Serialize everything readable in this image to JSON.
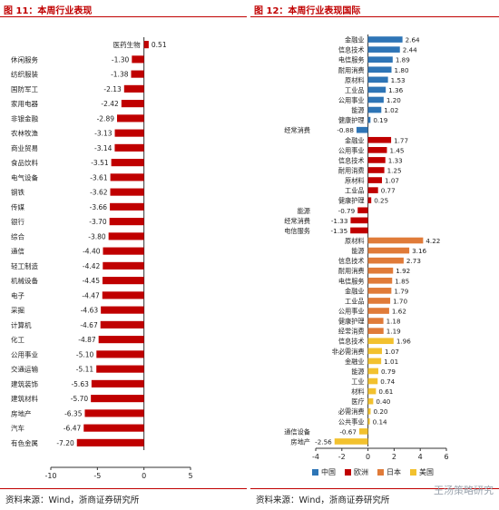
{
  "left_panel": {
    "title": "图 11：本周行业表现",
    "source": "资料来源：Wind，浙商证券研究所"
  },
  "right_panel": {
    "title": "图 12：本周行业表现国际",
    "source": "资料来源：Wind，浙商证券研究所",
    "watermark": "王汤策略研究"
  },
  "colors": {
    "china": "#2e75b6",
    "europe": "#c00000",
    "japan": "#e07b39",
    "us": "#f2c12e",
    "left_bar": "#c00000",
    "accent": "#c00000"
  },
  "chart_data": [
    {
      "type": "bar",
      "orientation": "horizontal",
      "categories": [
        "医药生物",
        "休闲服务",
        "纺织服装",
        "国防军工",
        "家用电器",
        "非银金融",
        "农林牧渔",
        "商业贸易",
        "食品饮料",
        "电气设备",
        "钢铁",
        "传媒",
        "银行",
        "综合",
        "通信",
        "轻工制造",
        "机械设备",
        "电子",
        "采掘",
        "计算机",
        "化工",
        "公用事业",
        "交通运输",
        "建筑装饰",
        "建筑材料",
        "房地产",
        "汽车",
        "有色金属"
      ],
      "values": [
        0.51,
        -1.3,
        -1.38,
        -2.13,
        -2.42,
        -2.89,
        -3.13,
        -3.14,
        -3.51,
        -3.61,
        -3.62,
        -3.66,
        -3.7,
        -3.8,
        -4.4,
        -4.42,
        -4.45,
        -4.47,
        -4.63,
        -4.67,
        -4.87,
        -5.1,
        -5.11,
        -5.63,
        -5.7,
        -6.35,
        -6.47,
        -7.2
      ],
      "value_labels": [
        "0.51",
        "-1.30",
        "-1.38",
        "-2.13",
        "-2.42",
        "-2.89",
        "-3.13",
        "-3.14",
        "-3.51",
        "-3.61",
        "-3.62",
        "-3.66",
        "-3.70",
        "-3.80",
        "-4.40",
        "-4.42",
        "-4.45",
        "-4.47",
        "-4.63",
        "-4.67",
        "-4.87",
        "-5.10",
        "-5.11",
        "-5.63",
        "-5.70",
        "-6.35",
        "-6.47",
        "-7.20"
      ],
      "xlim": [
        -10,
        5
      ],
      "xticks": [
        "-10",
        "-5",
        "0",
        "5"
      ],
      "xtick_values": [
        -10,
        -5,
        0,
        5
      ],
      "grid": false
    },
    {
      "type": "bar",
      "orientation": "horizontal",
      "categories": [
        "金融业",
        "信息技术",
        "电信服务",
        "耐用消费",
        "原材料",
        "工业品",
        "公用事业",
        "能源",
        "健康护理",
        "经常消费",
        "金融业",
        "公用事业",
        "信息技术",
        "耐用消费",
        "原材料",
        "工业品",
        "健康护理",
        "能源",
        "经常消费",
        "电信服务",
        "原材料",
        "能源",
        "信息技术",
        "耐用消费",
        "电信服务",
        "金融业",
        "工业品",
        "公用事业",
        "健康护理",
        "经常消费",
        "信息技术",
        "非必需消费",
        "金融业",
        "能源",
        "工业",
        "材料",
        "医疗",
        "必需消费",
        "公共事业",
        "通信设备",
        "房地产"
      ],
      "values": [
        2.64,
        2.44,
        1.89,
        1.8,
        1.53,
        1.36,
        1.2,
        1.02,
        0.19,
        -0.88,
        1.77,
        1.45,
        1.33,
        1.25,
        1.07,
        0.77,
        0.25,
        -0.79,
        -1.33,
        -1.35,
        4.22,
        3.16,
        2.73,
        1.92,
        1.85,
        1.79,
        1.7,
        1.62,
        1.18,
        1.19,
        1.96,
        1.07,
        1.01,
        0.79,
        0.74,
        0.61,
        0.4,
        0.2,
        0.14,
        -0.67,
        -2.56
      ],
      "value_labels": [
        "2.64",
        "2.44",
        "1.89",
        "1.80",
        "1.53",
        "1.36",
        "1.20",
        "1.02",
        "0.19",
        "-0.88",
        "1.77",
        "1.45",
        "1.33",
        "1.25",
        "1.07",
        "0.77",
        "0.25",
        "-0.79",
        "-1.33",
        "-1.35",
        "4.22",
        "3.16",
        "2.73",
        "1.92",
        "1.85",
        "1.79",
        "1.70",
        "1.62",
        "1.18",
        "1.19",
        "1.96",
        "1.07",
        "1.01",
        "0.79",
        "0.74",
        "0.61",
        "0.40",
        "0.20",
        "0.14",
        "-0.67",
        "-2.56"
      ],
      "groups": [
        "中国",
        "中国",
        "中国",
        "中国",
        "中国",
        "中国",
        "中国",
        "中国",
        "中国",
        "中国",
        "欧洲",
        "欧洲",
        "欧洲",
        "欧洲",
        "欧洲",
        "欧洲",
        "欧洲",
        "欧洲",
        "欧洲",
        "欧洲",
        "日本",
        "日本",
        "日本",
        "日本",
        "日本",
        "日本",
        "日本",
        "日本",
        "日本",
        "日本",
        "美国",
        "美国",
        "美国",
        "美国",
        "美国",
        "美国",
        "美国",
        "美国",
        "美国",
        "美国",
        "美国"
      ],
      "legend": [
        "中国",
        "欧洲",
        "日本",
        "美国"
      ],
      "legend_placement": "bottom",
      "xlim": [
        -4,
        6
      ],
      "xticks": [
        "-4",
        "-2",
        "0",
        "2",
        "4",
        "6"
      ],
      "xtick_values": [
        -4,
        -2,
        0,
        2,
        4,
        6
      ],
      "grid": false
    }
  ]
}
